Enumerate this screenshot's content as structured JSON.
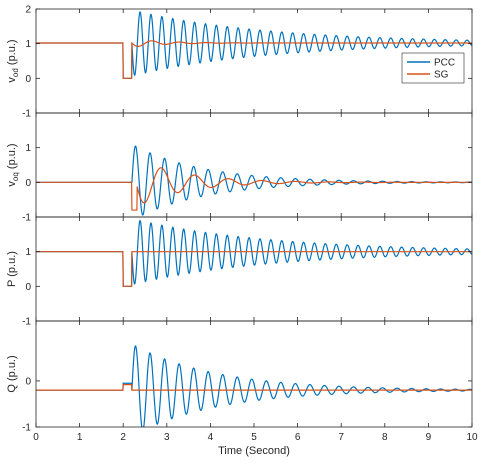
{
  "chart_data": [
    {
      "type": "line",
      "panel": "vod",
      "ylabel": "v",
      "ylabel_sub": "od",
      "ylabel_unit": "(p.u.)",
      "ylim": [
        -1,
        2
      ],
      "yticks": [
        -1,
        0,
        1,
        2
      ],
      "xlim": [
        0,
        10
      ],
      "grid": false,
      "legend": {
        "placement": "right",
        "entries": [
          "PCC",
          "SG"
        ]
      },
      "series": [
        {
          "name": "PCC",
          "color": "#0072BD",
          "pre": 1.02,
          "dip": 0.0,
          "fault": [
            2.0,
            2.18
          ],
          "final": 1.02,
          "osc": {
            "start": 2.2,
            "amp": 1.0,
            "freq": 4.0,
            "decay": 0.32,
            "amp_scale": 0.95,
            "sign": -1
          }
        },
        {
          "name": "SG",
          "color": "#D95319",
          "pre": 1.02,
          "dip": 0.0,
          "fault": [
            2.0,
            2.18
          ],
          "final": 1.02,
          "osc": {
            "start": 2.2,
            "amp": 0.12,
            "freq": 1.6,
            "decay": 1.4,
            "amp_scale": 1.0,
            "sign": -1
          }
        }
      ]
    },
    {
      "type": "line",
      "panel": "voq",
      "ylabel": "v",
      "ylabel_sub": "oq",
      "ylabel_unit": "(p.u.)",
      "ylim": [
        -1,
        2
      ],
      "yticks": [
        -1,
        0,
        1
      ],
      "xlim": [
        0,
        10
      ],
      "grid": false,
      "series": [
        {
          "name": "PCC",
          "color": "#0072BD",
          "pre": 0.0,
          "dip": 0.0,
          "fault": [
            2.0,
            2.18
          ],
          "final": 0.0,
          "osc": {
            "start": 2.2,
            "amp": 1.1,
            "freq": 3.0,
            "decay": 0.62,
            "amp_scale": 1.0,
            "sign": 1
          }
        },
        {
          "name": "SG",
          "color": "#D95319",
          "pre": 0.0,
          "dip": -0.8,
          "fault": [
            2.2,
            2.32
          ],
          "final": 0.0,
          "osc": {
            "start": 2.3,
            "amp": 0.7,
            "freq": 1.3,
            "decay": 0.9,
            "amp_scale": 1.0,
            "sign": -1
          }
        }
      ]
    },
    {
      "type": "line",
      "panel": "P",
      "ylabel": "P",
      "ylabel_unit": "(p.u.)",
      "ylim": [
        -1,
        2
      ],
      "yticks": [
        -1,
        0,
        1
      ],
      "xlim": [
        0,
        10
      ],
      "grid": false,
      "series": [
        {
          "name": "PCC",
          "color": "#0072BD",
          "pre": 1.0,
          "dip": 0.0,
          "fault": [
            2.0,
            2.18
          ],
          "final": 1.0,
          "osc": {
            "start": 2.2,
            "amp": 1.0,
            "freq": 4.0,
            "decay": 0.32,
            "amp_scale": 0.95,
            "sign": -1
          }
        },
        {
          "name": "SG",
          "color": "#D95319",
          "pre": 1.0,
          "dip": 0.0,
          "fault": [
            2.0,
            2.18
          ],
          "final": 1.0,
          "osc": {
            "start": 2.2,
            "amp": 0.0,
            "freq": 1.0,
            "decay": 1.0,
            "amp_scale": 1.0,
            "sign": 1
          }
        }
      ]
    },
    {
      "type": "line",
      "panel": "Q",
      "ylabel": "Q",
      "ylabel_unit": "(p.u.)",
      "ylim": [
        -1,
        1.3
      ],
      "yticks": [
        -1,
        0
      ],
      "xlim": [
        0,
        10
      ],
      "xticks": [
        0,
        1,
        2,
        3,
        4,
        5,
        6,
        7,
        8,
        9,
        10
      ],
      "xlabel": "Time (Second)",
      "grid": false,
      "series": [
        {
          "name": "PCC",
          "color": "#0072BD",
          "pre": -0.2,
          "dip": -0.05,
          "fault": [
            2.0,
            2.18
          ],
          "final": -0.2,
          "osc": {
            "start": 2.2,
            "amp": 1.0,
            "freq": 3.0,
            "decay": 0.52,
            "amp_scale": 1.0,
            "sign": 1
          }
        },
        {
          "name": "SG",
          "color": "#D95319",
          "pre": -0.2,
          "dip": -0.08,
          "fault": [
            2.0,
            2.18
          ],
          "final": -0.2,
          "osc": {
            "start": 2.2,
            "amp": 0.0,
            "freq": 1.0,
            "decay": 1.0,
            "amp_scale": 1.0,
            "sign": 1
          }
        }
      ]
    }
  ]
}
